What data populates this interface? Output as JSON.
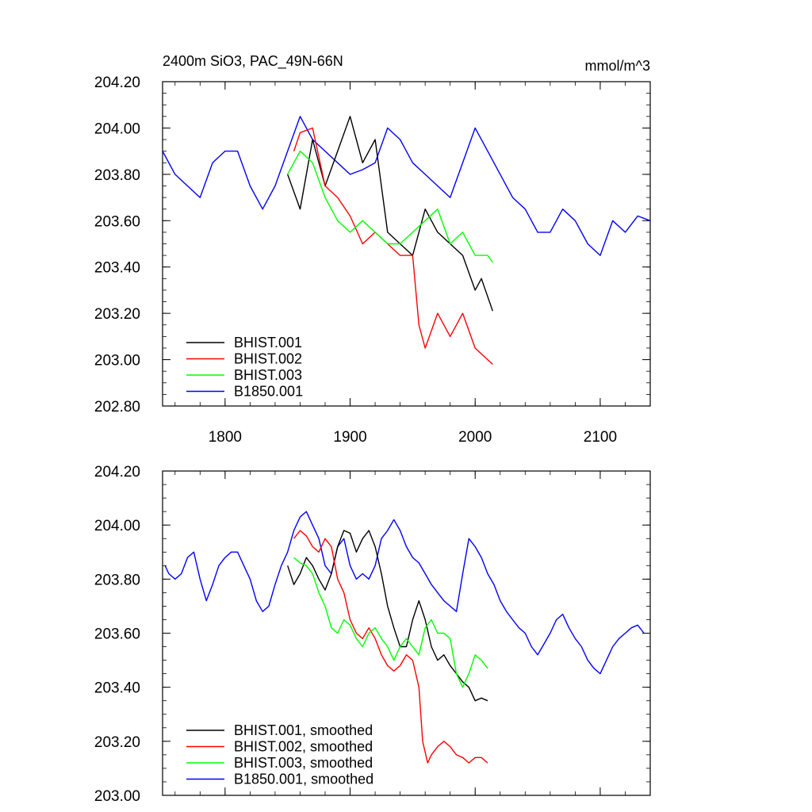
{
  "chart_data": [
    {
      "type": "line",
      "title": "2400m SiO3, PAC_49N-66N",
      "units": "mmol/m^3",
      "xlim": [
        1750,
        2140
      ],
      "ylim": [
        202.8,
        204.2
      ],
      "xticks": [
        1800,
        1900,
        2000,
        2100
      ],
      "yticks": [
        202.8,
        203.0,
        203.2,
        203.4,
        203.6,
        203.8,
        204.0,
        204.2
      ],
      "xtick_labels": [
        "1800",
        "1900",
        "2000",
        "2100"
      ],
      "ytick_labels": [
        "202.80",
        "203.00",
        "203.20",
        "203.40",
        "203.60",
        "203.80",
        "204.00",
        "204.20"
      ],
      "grid": false,
      "legend_position": "bottom-left",
      "series": [
        {
          "name": "BHIST.001",
          "color": "#000000",
          "x": [
            1850,
            1860,
            1870,
            1880,
            1890,
            1900,
            1910,
            1920,
            1930,
            1940,
            1950,
            1960,
            1970,
            1980,
            1990,
            2000,
            2005,
            2014
          ],
          "y": [
            203.8,
            203.65,
            203.95,
            203.75,
            203.9,
            204.05,
            203.85,
            203.95,
            203.55,
            203.5,
            203.45,
            203.65,
            203.55,
            203.5,
            203.45,
            203.3,
            203.35,
            203.21
          ]
        },
        {
          "name": "BHIST.002",
          "color": "#ff0000",
          "x": [
            1855,
            1860,
            1870,
            1880,
            1890,
            1900,
            1910,
            1920,
            1930,
            1940,
            1950,
            1955,
            1960,
            1970,
            1980,
            1990,
            2000,
            2010,
            2014
          ],
          "y": [
            203.9,
            203.98,
            204.0,
            203.75,
            203.7,
            203.62,
            203.5,
            203.55,
            203.5,
            203.45,
            203.45,
            203.15,
            203.05,
            203.2,
            203.1,
            203.2,
            203.05,
            203.0,
            202.98
          ]
        },
        {
          "name": "BHIST.003",
          "color": "#00ff00",
          "x": [
            1850,
            1860,
            1870,
            1880,
            1890,
            1900,
            1910,
            1920,
            1930,
            1940,
            1950,
            1960,
            1970,
            1980,
            1990,
            2000,
            2010,
            2014
          ],
          "y": [
            203.8,
            203.9,
            203.85,
            203.7,
            203.6,
            203.55,
            203.6,
            203.55,
            203.5,
            203.5,
            203.55,
            203.6,
            203.65,
            203.5,
            203.55,
            203.45,
            203.45,
            203.42
          ]
        },
        {
          "name": "B1850.001",
          "color": "#0000ff",
          "x": [
            1750,
            1760,
            1770,
            1780,
            1790,
            1800,
            1810,
            1820,
            1830,
            1840,
            1850,
            1860,
            1870,
            1880,
            1890,
            1900,
            1910,
            1920,
            1930,
            1940,
            1950,
            1960,
            1970,
            1980,
            1990,
            2000,
            2010,
            2020,
            2030,
            2040,
            2050,
            2060,
            2070,
            2080,
            2090,
            2100,
            2110,
            2120,
            2130,
            2140
          ],
          "y": [
            203.9,
            203.8,
            203.75,
            203.7,
            203.85,
            203.9,
            203.9,
            203.75,
            203.65,
            203.75,
            203.9,
            204.05,
            203.95,
            203.9,
            203.85,
            203.8,
            203.82,
            203.85,
            204.0,
            203.95,
            203.85,
            203.8,
            203.75,
            203.7,
            203.85,
            204.0,
            203.9,
            203.8,
            203.7,
            203.65,
            203.55,
            203.55,
            203.65,
            203.6,
            203.5,
            203.45,
            203.6,
            203.55,
            203.62,
            203.6
          ]
        }
      ]
    },
    {
      "type": "line",
      "title": "",
      "xlim": [
        1750,
        2140
      ],
      "ylim": [
        203.0,
        204.2
      ],
      "xticks": [
        1800,
        1900,
        2000,
        2100
      ],
      "yticks": [
        203.0,
        203.2,
        203.4,
        203.6,
        203.8,
        204.0,
        204.2
      ],
      "ytick_labels": [
        "203.00",
        "203.20",
        "203.40",
        "203.60",
        "203.80",
        "204.00",
        "204.20"
      ],
      "grid": false,
      "legend_position": "bottom-left",
      "series": [
        {
          "name": "BHIST.001, smoothed",
          "color": "#000000",
          "x": [
            1850,
            1855,
            1860,
            1865,
            1870,
            1875,
            1880,
            1885,
            1890,
            1895,
            1900,
            1905,
            1910,
            1915,
            1920,
            1925,
            1930,
            1935,
            1940,
            1945,
            1950,
            1955,
            1960,
            1965,
            1970,
            1975,
            1980,
            1985,
            1990,
            1995,
            2000,
            2005,
            2010
          ],
          "y": [
            203.85,
            203.78,
            203.82,
            203.88,
            203.85,
            203.8,
            203.76,
            203.82,
            203.92,
            203.98,
            203.97,
            203.9,
            203.95,
            203.98,
            203.92,
            203.82,
            203.7,
            203.62,
            203.55,
            203.55,
            203.65,
            203.72,
            203.65,
            203.55,
            203.5,
            203.52,
            203.48,
            203.45,
            203.42,
            203.4,
            203.35,
            203.36,
            203.35
          ]
        },
        {
          "name": "BHIST.002, smoothed",
          "color": "#ff0000",
          "x": [
            1855,
            1860,
            1865,
            1870,
            1875,
            1880,
            1885,
            1890,
            1895,
            1900,
            1905,
            1910,
            1915,
            1920,
            1925,
            1930,
            1935,
            1940,
            1945,
            1950,
            1955,
            1958,
            1962,
            1965,
            1970,
            1975,
            1980,
            1985,
            1990,
            1995,
            2000,
            2005,
            2010
          ],
          "y": [
            203.95,
            203.98,
            203.96,
            203.92,
            203.9,
            203.95,
            203.92,
            203.8,
            203.75,
            203.65,
            203.6,
            203.58,
            203.62,
            203.58,
            203.52,
            203.48,
            203.46,
            203.48,
            203.52,
            203.5,
            203.4,
            203.2,
            203.12,
            203.15,
            203.18,
            203.2,
            203.18,
            203.15,
            203.14,
            203.12,
            203.14,
            203.14,
            203.12
          ]
        },
        {
          "name": "BHIST.003, smoothed",
          "color": "#00ff00",
          "x": [
            1855,
            1860,
            1865,
            1870,
            1875,
            1880,
            1885,
            1890,
            1895,
            1900,
            1905,
            1910,
            1915,
            1920,
            1925,
            1930,
            1935,
            1940,
            1945,
            1950,
            1955,
            1960,
            1965,
            1970,
            1975,
            1980,
            1985,
            1990,
            1995,
            2000,
            2005,
            2010
          ],
          "y": [
            203.88,
            203.86,
            203.85,
            203.82,
            203.75,
            203.7,
            203.62,
            203.6,
            203.65,
            203.63,
            203.58,
            203.55,
            203.6,
            203.62,
            203.58,
            203.55,
            203.5,
            203.55,
            203.58,
            203.55,
            203.52,
            203.62,
            203.65,
            203.6,
            203.6,
            203.58,
            203.45,
            203.4,
            203.45,
            203.52,
            203.5,
            203.47
          ]
        },
        {
          "name": "B1850.001, smoothed",
          "color": "#0000ff",
          "x": [
            1752,
            1755,
            1760,
            1765,
            1770,
            1775,
            1780,
            1785,
            1790,
            1795,
            1800,
            1805,
            1810,
            1815,
            1820,
            1825,
            1830,
            1835,
            1840,
            1845,
            1850,
            1855,
            1860,
            1865,
            1870,
            1875,
            1880,
            1885,
            1890,
            1895,
            1900,
            1905,
            1910,
            1915,
            1920,
            1925,
            1930,
            1935,
            1940,
            1945,
            1950,
            1955,
            1960,
            1965,
            1970,
            1975,
            1980,
            1985,
            1990,
            1995,
            2000,
            2005,
            2010,
            2015,
            2020,
            2025,
            2030,
            2035,
            2040,
            2045,
            2050,
            2055,
            2060,
            2065,
            2070,
            2075,
            2080,
            2085,
            2090,
            2095,
            2100,
            2105,
            2110,
            2115,
            2120,
            2125,
            2130,
            2135
          ],
          "y": [
            203.85,
            203.82,
            203.8,
            203.82,
            203.88,
            203.9,
            203.8,
            203.72,
            203.78,
            203.85,
            203.88,
            203.9,
            203.9,
            203.85,
            203.8,
            203.72,
            203.68,
            203.7,
            203.78,
            203.85,
            203.9,
            203.98,
            204.03,
            204.05,
            204.0,
            203.95,
            203.85,
            203.82,
            203.92,
            203.95,
            203.85,
            203.8,
            203.82,
            203.8,
            203.85,
            203.95,
            203.98,
            204.02,
            203.98,
            203.92,
            203.88,
            203.86,
            203.82,
            203.78,
            203.75,
            203.72,
            203.7,
            203.68,
            203.82,
            203.95,
            203.92,
            203.88,
            203.82,
            203.78,
            203.72,
            203.68,
            203.65,
            203.62,
            203.6,
            203.55,
            203.52,
            203.56,
            203.6,
            203.65,
            203.67,
            203.62,
            203.58,
            203.55,
            203.5,
            203.47,
            203.45,
            203.5,
            203.55,
            203.58,
            203.6,
            203.62,
            203.63,
            203.6
          ]
        }
      ]
    }
  ]
}
